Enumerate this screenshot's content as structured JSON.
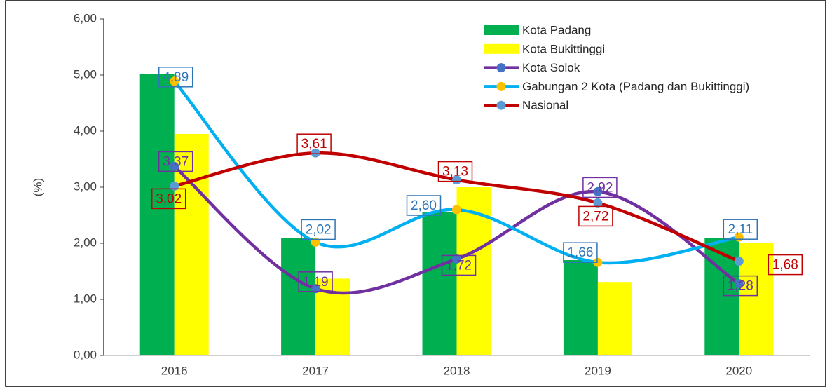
{
  "chart_data": {
    "type": "bar",
    "y_label": "(%)",
    "categories": [
      "2016",
      "2017",
      "2018",
      "2019",
      "2020"
    ],
    "ylim": [
      0,
      6
    ],
    "yticks": [
      {
        "value": 0,
        "label": "0,00"
      },
      {
        "value": 1,
        "label": "1,00"
      },
      {
        "value": 2,
        "label": "2,00"
      },
      {
        "value": 3,
        "label": "3,00"
      },
      {
        "value": 4,
        "label": "4,00"
      },
      {
        "value": 5,
        "label": "5,00"
      },
      {
        "value": 6,
        "label": "6,00"
      }
    ],
    "series": [
      {
        "name": "Kota Padang",
        "type": "bar",
        "color": "#00b050",
        "values": [
          5.02,
          2.1,
          2.55,
          1.7,
          2.1
        ]
      },
      {
        "name": "Kota Bukittinggi",
        "type": "bar",
        "color": "#ffff00",
        "values": [
          3.95,
          1.37,
          3.0,
          1.31,
          2.0
        ]
      },
      {
        "name": "Kota Solok",
        "type": "line",
        "color": "#7030a0",
        "marker_color": "#4472c4",
        "label_color": "#7030a0",
        "values": [
          3.37,
          1.19,
          1.72,
          2.92,
          1.28
        ],
        "value_labels": [
          "3,37",
          "1,19",
          "1,72",
          "2,92",
          "1,28"
        ]
      },
      {
        "name": "Gabungan 2 Kota (Padang dan Bukittinggi)",
        "type": "line",
        "color": "#00b0f0",
        "marker_color": "#ffc000",
        "label_color": "#2e75b6",
        "values": [
          4.89,
          2.02,
          2.6,
          1.66,
          2.11
        ],
        "value_labels": [
          "4,89",
          "2,02",
          "2,60",
          "1,66",
          "2,11"
        ]
      },
      {
        "name": "Nasional",
        "type": "line",
        "color": "#c00000",
        "marker_color": "#5b9bd5",
        "label_color": "#c00000",
        "values": [
          3.02,
          3.61,
          3.13,
          2.72,
          1.68
        ],
        "value_labels": [
          "3,02",
          "3,61",
          "3,13",
          "2,72",
          "1,68"
        ]
      }
    ]
  }
}
